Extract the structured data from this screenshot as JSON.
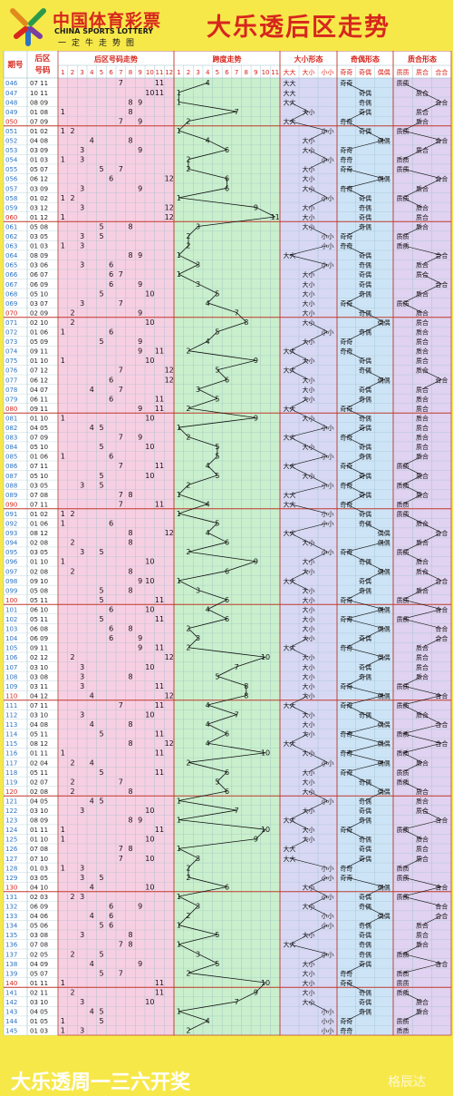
{
  "header": {
    "logo_cn": "中国体育彩票",
    "logo_en": "CHINA SPORTS LOTTERY",
    "logo_slogan": "一定牛走势图",
    "title": "大乐透后区走势"
  },
  "footer": {
    "text": "大乐透周一三六开奖",
    "watermark": "格辰达"
  },
  "table_headers": {
    "issue": [
      "期号"
    ],
    "back": [
      "后区",
      "号码"
    ],
    "sections": [
      "后区号码走势",
      "跨度走势",
      "大小形态",
      "奇偶形态",
      "质合形态"
    ],
    "size_cols": [
      "大大",
      "大小",
      "小小"
    ],
    "parity_cols": [
      "奇奇",
      "奇偶",
      "偶偶"
    ],
    "prime_cols": [
      "质质",
      "质合",
      "合合"
    ],
    "nums": [
      "1",
      "2",
      "3",
      "4",
      "5",
      "6",
      "7",
      "8",
      "9",
      "10",
      "11",
      "12"
    ],
    "spans": [
      "1",
      "2",
      "3",
      "4",
      "5",
      "6",
      "7",
      "8",
      "9",
      "10",
      "11"
    ]
  },
  "colors": {
    "background": "#f7e84a",
    "title_red": "#d6261d",
    "issue_blue": "#2c73c4",
    "issue_red": "#d6261d",
    "zone_pink": "#f7cfe3",
    "zone_green": "#c9efcc",
    "zone_lavender": "#d8d8f4",
    "zone_blue": "#cde4f7",
    "zone_purple": "#e0d2f0",
    "grid_line": "#9ac0c8",
    "group_line": "#c0392b"
  },
  "chart_data": {
    "type": "table",
    "rows": [
      {
        "issue": "046",
        "nums": [
          7,
          11
        ]
      },
      {
        "issue": "047",
        "nums": [
          10,
          11
        ]
      },
      {
        "issue": "048",
        "nums": [
          8,
          9
        ]
      },
      {
        "issue": "049",
        "nums": [
          1,
          8
        ]
      },
      {
        "issue": "050",
        "nums": [
          7,
          9
        ]
      },
      {
        "issue": "051",
        "nums": [
          1,
          2
        ]
      },
      {
        "issue": "052",
        "nums": [
          4,
          8
        ]
      },
      {
        "issue": "053",
        "nums": [
          3,
          9
        ]
      },
      {
        "issue": "054",
        "nums": [
          1,
          3
        ]
      },
      {
        "issue": "055",
        "nums": [
          5,
          7
        ]
      },
      {
        "issue": "056",
        "nums": [
          6,
          12
        ]
      },
      {
        "issue": "057",
        "nums": [
          3,
          9
        ]
      },
      {
        "issue": "058",
        "nums": [
          1,
          2
        ]
      },
      {
        "issue": "059",
        "nums": [
          3,
          12
        ]
      },
      {
        "issue": "060",
        "nums": [
          1,
          12
        ]
      },
      {
        "issue": "061",
        "nums": [
          5,
          8
        ]
      },
      {
        "issue": "062",
        "nums": [
          3,
          5
        ]
      },
      {
        "issue": "063",
        "nums": [
          1,
          3
        ]
      },
      {
        "issue": "064",
        "nums": [
          8,
          9
        ]
      },
      {
        "issue": "065",
        "nums": [
          3,
          6
        ]
      },
      {
        "issue": "066",
        "nums": [
          6,
          7
        ]
      },
      {
        "issue": "067",
        "nums": [
          6,
          9
        ]
      },
      {
        "issue": "068",
        "nums": [
          5,
          10
        ]
      },
      {
        "issue": "069",
        "nums": [
          3,
          7
        ]
      },
      {
        "issue": "070",
        "nums": [
          2,
          9
        ]
      },
      {
        "issue": "071",
        "nums": [
          2,
          10
        ]
      },
      {
        "issue": "072",
        "nums": [
          1,
          6
        ]
      },
      {
        "issue": "073",
        "nums": [
          5,
          9
        ]
      },
      {
        "issue": "074",
        "nums": [
          9,
          11
        ]
      },
      {
        "issue": "075",
        "nums": [
          1,
          10
        ]
      },
      {
        "issue": "076",
        "nums": [
          7,
          12
        ]
      },
      {
        "issue": "077",
        "nums": [
          6,
          12
        ]
      },
      {
        "issue": "078",
        "nums": [
          4,
          7
        ]
      },
      {
        "issue": "079",
        "nums": [
          6,
          11
        ]
      },
      {
        "issue": "080",
        "nums": [
          9,
          11
        ]
      },
      {
        "issue": "081",
        "nums": [
          1,
          10
        ]
      },
      {
        "issue": "082",
        "nums": [
          4,
          5
        ]
      },
      {
        "issue": "083",
        "nums": [
          7,
          9
        ]
      },
      {
        "issue": "084",
        "nums": [
          5,
          10
        ]
      },
      {
        "issue": "085",
        "nums": [
          1,
          6
        ]
      },
      {
        "issue": "086",
        "nums": [
          7,
          11
        ]
      },
      {
        "issue": "087",
        "nums": [
          5,
          10
        ]
      },
      {
        "issue": "088",
        "nums": [
          3,
          5
        ]
      },
      {
        "issue": "089",
        "nums": [
          7,
          8
        ]
      },
      {
        "issue": "090",
        "nums": [
          7,
          11
        ]
      },
      {
        "issue": "091",
        "nums": [
          1,
          2
        ]
      },
      {
        "issue": "092",
        "nums": [
          1,
          6
        ]
      },
      {
        "issue": "093",
        "nums": [
          8,
          12
        ]
      },
      {
        "issue": "094",
        "nums": [
          2,
          8
        ]
      },
      {
        "issue": "095",
        "nums": [
          3,
          5
        ]
      },
      {
        "issue": "096",
        "nums": [
          1,
          10
        ]
      },
      {
        "issue": "097",
        "nums": [
          2,
          8
        ]
      },
      {
        "issue": "098",
        "nums": [
          9,
          10
        ]
      },
      {
        "issue": "099",
        "nums": [
          5,
          8
        ]
      },
      {
        "issue": "100",
        "nums": [
          5,
          11
        ]
      },
      {
        "issue": "101",
        "nums": [
          6,
          10
        ]
      },
      {
        "issue": "102",
        "nums": [
          5,
          11
        ]
      },
      {
        "issue": "103",
        "nums": [
          6,
          8
        ]
      },
      {
        "issue": "104",
        "nums": [
          6,
          9
        ]
      },
      {
        "issue": "105",
        "nums": [
          9,
          11
        ]
      },
      {
        "issue": "106",
        "nums": [
          2,
          12
        ]
      },
      {
        "issue": "107",
        "nums": [
          3,
          10
        ]
      },
      {
        "issue": "108",
        "nums": [
          3,
          8
        ]
      },
      {
        "issue": "109",
        "nums": [
          3,
          11
        ]
      },
      {
        "issue": "110",
        "nums": [
          4,
          12
        ]
      },
      {
        "issue": "111",
        "nums": [
          7,
          11
        ]
      },
      {
        "issue": "112",
        "nums": [
          3,
          10
        ]
      },
      {
        "issue": "113",
        "nums": [
          4,
          8
        ]
      },
      {
        "issue": "114",
        "nums": [
          5,
          11
        ]
      },
      {
        "issue": "115",
        "nums": [
          8,
          12
        ]
      },
      {
        "issue": "116",
        "nums": [
          1,
          11
        ]
      },
      {
        "issue": "117",
        "nums": [
          2,
          4
        ]
      },
      {
        "issue": "118",
        "nums": [
          5,
          11
        ]
      },
      {
        "issue": "119",
        "nums": [
          2,
          7
        ]
      },
      {
        "issue": "120",
        "nums": [
          2,
          8
        ]
      },
      {
        "issue": "121",
        "nums": [
          4,
          5
        ]
      },
      {
        "issue": "122",
        "nums": [
          3,
          10
        ]
      },
      {
        "issue": "123",
        "nums": [
          8,
          9
        ]
      },
      {
        "issue": "124",
        "nums": [
          1,
          11
        ]
      },
      {
        "issue": "125",
        "nums": [
          1,
          10
        ]
      },
      {
        "issue": "126",
        "nums": [
          7,
          8
        ]
      },
      {
        "issue": "127",
        "nums": [
          7,
          10
        ]
      },
      {
        "issue": "128",
        "nums": [
          1,
          3
        ]
      },
      {
        "issue": "129",
        "nums": [
          3,
          5
        ]
      },
      {
        "issue": "130",
        "nums": [
          4,
          10
        ]
      },
      {
        "issue": "131",
        "nums": [
          2,
          3
        ]
      },
      {
        "issue": "132",
        "nums": [
          6,
          9
        ]
      },
      {
        "issue": "133",
        "nums": [
          4,
          6
        ]
      },
      {
        "issue": "134",
        "nums": [
          5,
          6
        ]
      },
      {
        "issue": "135",
        "nums": [
          3,
          8
        ]
      },
      {
        "issue": "136",
        "nums": [
          7,
          8
        ]
      },
      {
        "issue": "137",
        "nums": [
          2,
          5
        ]
      },
      {
        "issue": "138",
        "nums": [
          4,
          9
        ]
      },
      {
        "issue": "139",
        "nums": [
          5,
          7
        ]
      },
      {
        "issue": "140",
        "nums": [
          1,
          11
        ]
      },
      {
        "issue": "141",
        "nums": [
          2,
          11
        ]
      },
      {
        "issue": "142",
        "nums": [
          3,
          10
        ]
      },
      {
        "issue": "143",
        "nums": [
          4,
          5
        ]
      },
      {
        "issue": "144",
        "nums": [
          1,
          5
        ]
      },
      {
        "issue": "145",
        "nums": [
          1,
          3
        ]
      }
    ]
  }
}
